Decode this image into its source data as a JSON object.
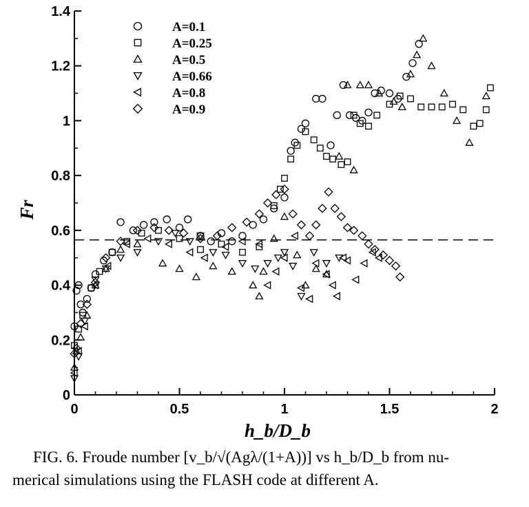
{
  "chart_data": {
    "type": "scatter",
    "xlabel": "h_b/D_b",
    "ylabel": "Fr",
    "xlim": [
      0,
      2
    ],
    "ylim": [
      0,
      1.4
    ],
    "xticks": [
      "0",
      "0.5",
      "1",
      "1.5",
      "2"
    ],
    "yticks": [
      "0",
      "0.2",
      "0.4",
      "0.6",
      "0.8",
      "1",
      "1.2",
      "1.4"
    ],
    "grid": false,
    "legend_position": "top-left",
    "reference_line": {
      "y": 0.565,
      "style": "dashed"
    },
    "series": [
      {
        "name": "A=0.1",
        "marker": "circle",
        "points": [
          [
            0.0,
            0.25
          ],
          [
            0.01,
            0.38
          ],
          [
            0.02,
            0.4
          ],
          [
            0.03,
            0.33
          ],
          [
            0.04,
            0.3
          ],
          [
            0.06,
            0.35
          ],
          [
            0.08,
            0.39
          ],
          [
            0.1,
            0.44
          ],
          [
            0.14,
            0.49
          ],
          [
            0.18,
            0.52
          ],
          [
            0.22,
            0.63
          ],
          [
            0.28,
            0.6
          ],
          [
            0.33,
            0.62
          ],
          [
            0.38,
            0.63
          ],
          [
            0.44,
            0.64
          ],
          [
            0.5,
            0.61
          ],
          [
            0.54,
            0.64
          ],
          [
            0.6,
            0.58
          ],
          [
            0.65,
            0.56
          ],
          [
            0.7,
            0.59
          ],
          [
            0.75,
            0.56
          ],
          [
            0.8,
            0.58
          ],
          [
            0.85,
            0.62
          ],
          [
            0.9,
            0.64
          ],
          [
            0.95,
            0.68
          ],
          [
            1.0,
            0.72
          ],
          [
            1.03,
            0.89
          ],
          [
            1.05,
            0.92
          ],
          [
            1.08,
            0.97
          ],
          [
            1.1,
            0.99
          ],
          [
            1.15,
            1.08
          ],
          [
            1.18,
            1.08
          ],
          [
            1.22,
            0.91
          ],
          [
            1.25,
            1.02
          ],
          [
            1.28,
            1.13
          ],
          [
            1.31,
            1.02
          ],
          [
            1.34,
            1.01
          ],
          [
            1.37,
            1.0
          ],
          [
            1.4,
            1.03
          ],
          [
            1.43,
            1.1
          ],
          [
            1.46,
            1.11
          ],
          [
            1.5,
            1.1
          ],
          [
            1.54,
            1.08
          ],
          [
            1.58,
            1.16
          ],
          [
            1.61,
            1.21
          ],
          [
            1.64,
            1.28
          ]
        ]
      },
      {
        "name": "A=0.25",
        "marker": "square",
        "points": [
          [
            0.0,
            0.18
          ],
          [
            0.02,
            0.24
          ],
          [
            0.04,
            0.29
          ],
          [
            0.08,
            0.39
          ],
          [
            0.12,
            0.45
          ],
          [
            0.18,
            0.52
          ],
          [
            0.25,
            0.56
          ],
          [
            0.32,
            0.59
          ],
          [
            0.4,
            0.6
          ],
          [
            0.5,
            0.57
          ],
          [
            0.6,
            0.53
          ],
          [
            0.7,
            0.55
          ],
          [
            0.8,
            0.52
          ],
          [
            0.88,
            0.54
          ],
          [
            0.95,
            0.69
          ],
          [
            0.98,
            0.75
          ],
          [
            1.0,
            0.79
          ],
          [
            1.03,
            0.86
          ],
          [
            1.06,
            0.91
          ],
          [
            1.1,
            0.96
          ],
          [
            1.14,
            0.93
          ],
          [
            1.17,
            0.9
          ],
          [
            1.2,
            0.87
          ],
          [
            1.23,
            0.86
          ],
          [
            1.27,
            0.84
          ],
          [
            1.3,
            0.85
          ],
          [
            1.33,
            1.02
          ],
          [
            1.36,
            0.99
          ],
          [
            1.4,
            0.98
          ],
          [
            1.44,
            1.02
          ],
          [
            1.5,
            1.06
          ],
          [
            1.55,
            1.09
          ],
          [
            1.6,
            1.08
          ],
          [
            1.65,
            1.05
          ],
          [
            1.7,
            1.05
          ],
          [
            1.75,
            1.05
          ],
          [
            1.8,
            1.06
          ],
          [
            1.85,
            1.04
          ],
          [
            1.9,
            0.98
          ],
          [
            1.93,
            0.99
          ],
          [
            1.96,
            1.04
          ],
          [
            1.98,
            1.12
          ]
        ]
      },
      {
        "name": "A=0.5",
        "marker": "triangle-up",
        "points": [
          [
            0.0,
            0.1
          ],
          [
            0.01,
            0.16
          ],
          [
            0.03,
            0.21
          ],
          [
            0.06,
            0.29
          ],
          [
            0.1,
            0.4
          ],
          [
            0.15,
            0.46
          ],
          [
            0.22,
            0.53
          ],
          [
            0.3,
            0.55
          ],
          [
            0.42,
            0.48
          ],
          [
            0.5,
            0.46
          ],
          [
            0.58,
            0.43
          ],
          [
            0.66,
            0.47
          ],
          [
            0.75,
            0.45
          ],
          [
            0.85,
            0.4
          ],
          [
            0.88,
            0.36
          ],
          [
            0.9,
            0.45
          ],
          [
            0.95,
            0.57
          ],
          [
            1.0,
            0.65
          ],
          [
            1.06,
            0.51
          ],
          [
            1.1,
            0.4
          ],
          [
            1.15,
            0.46
          ],
          [
            1.2,
            0.44
          ],
          [
            1.26,
            0.87
          ],
          [
            1.3,
            1.13
          ],
          [
            1.33,
            0.82
          ],
          [
            1.36,
            1.13
          ],
          [
            1.4,
            1.13
          ],
          [
            1.45,
            1.1
          ],
          [
            1.52,
            1.07
          ],
          [
            1.56,
            1.05
          ],
          [
            1.6,
            1.17
          ],
          [
            1.63,
            1.24
          ],
          [
            1.66,
            1.3
          ],
          [
            1.7,
            1.2
          ],
          [
            1.76,
            1.1
          ],
          [
            1.82,
            1.0
          ],
          [
            1.88,
            0.92
          ],
          [
            1.96,
            1.09
          ]
        ]
      },
      {
        "name": "A=0.66",
        "marker": "triangle-down",
        "points": [
          [
            0.0,
            0.06
          ],
          [
            0.02,
            0.14
          ],
          [
            0.05,
            0.27
          ],
          [
            0.1,
            0.42
          ],
          [
            0.15,
            0.46
          ],
          [
            0.22,
            0.5
          ],
          [
            0.3,
            0.52
          ],
          [
            0.4,
            0.56
          ],
          [
            0.48,
            0.59
          ],
          [
            0.55,
            0.56
          ],
          [
            0.6,
            0.58
          ],
          [
            0.66,
            0.52
          ],
          [
            0.72,
            0.51
          ],
          [
            0.8,
            0.48
          ],
          [
            0.86,
            0.46
          ],
          [
            0.92,
            0.48
          ],
          [
            0.97,
            0.5
          ],
          [
            1.0,
            0.52
          ],
          [
            1.04,
            0.47
          ],
          [
            1.08,
            0.36
          ],
          [
            1.14,
            0.52
          ],
          [
            1.2,
            0.48
          ],
          [
            1.26,
            0.5
          ]
        ]
      },
      {
        "name": "A=0.8",
        "marker": "triangle-left",
        "points": [
          [
            0.0,
            0.08
          ],
          [
            0.02,
            0.16
          ],
          [
            0.05,
            0.25
          ],
          [
            0.1,
            0.4
          ],
          [
            0.16,
            0.47
          ],
          [
            0.25,
            0.55
          ],
          [
            0.35,
            0.57
          ],
          [
            0.45,
            0.55
          ],
          [
            0.55,
            0.52
          ],
          [
            0.62,
            0.5
          ],
          [
            0.72,
            0.54
          ],
          [
            0.8,
            0.56
          ],
          [
            0.88,
            0.55
          ],
          [
            0.92,
            0.4
          ],
          [
            0.96,
            0.45
          ],
          [
            1.0,
            0.5
          ],
          [
            1.05,
            0.58
          ],
          [
            1.08,
            0.39
          ],
          [
            1.12,
            0.35
          ],
          [
            1.15,
            0.48
          ],
          [
            1.2,
            0.44
          ],
          [
            1.23,
            0.4
          ],
          [
            1.25,
            0.36
          ],
          [
            1.28,
            0.5
          ],
          [
            1.3,
            0.49
          ],
          [
            1.34,
            0.42
          ],
          [
            1.38,
            0.48
          ],
          [
            1.42,
            0.52
          ],
          [
            1.45,
            0.5
          ]
        ]
      },
      {
        "name": "A=0.9",
        "marker": "diamond",
        "points": [
          [
            0.0,
            0.15
          ],
          [
            0.01,
            0.17
          ],
          [
            0.03,
            0.26
          ],
          [
            0.06,
            0.33
          ],
          [
            0.1,
            0.41
          ],
          [
            0.15,
            0.5
          ],
          [
            0.22,
            0.56
          ],
          [
            0.3,
            0.6
          ],
          [
            0.38,
            0.61
          ],
          [
            0.45,
            0.6
          ],
          [
            0.52,
            0.59
          ],
          [
            0.6,
            0.57
          ],
          [
            0.68,
            0.58
          ],
          [
            0.75,
            0.61
          ],
          [
            0.82,
            0.63
          ],
          [
            0.88,
            0.66
          ],
          [
            0.92,
            0.7
          ],
          [
            0.96,
            0.73
          ],
          [
            1.0,
            0.75
          ],
          [
            1.04,
            0.66
          ],
          [
            1.08,
            0.62
          ],
          [
            1.12,
            0.58
          ],
          [
            1.15,
            0.62
          ],
          [
            1.18,
            0.68
          ],
          [
            1.21,
            0.74
          ],
          [
            1.24,
            0.68
          ],
          [
            1.27,
            0.65
          ],
          [
            1.3,
            0.61
          ],
          [
            1.33,
            0.6
          ],
          [
            1.37,
            0.58
          ],
          [
            1.4,
            0.55
          ],
          [
            1.43,
            0.53
          ],
          [
            1.47,
            0.51
          ],
          [
            1.5,
            0.49
          ],
          [
            1.53,
            0.47
          ],
          [
            1.55,
            0.43
          ]
        ]
      }
    ]
  },
  "caption": {
    "line1": "FIG. 6. Froude number [v_b/√(Agλ/(1+A))] vs h_b/D_b from nu-",
    "line2": "merical simulations using the FLASH code at different A."
  }
}
